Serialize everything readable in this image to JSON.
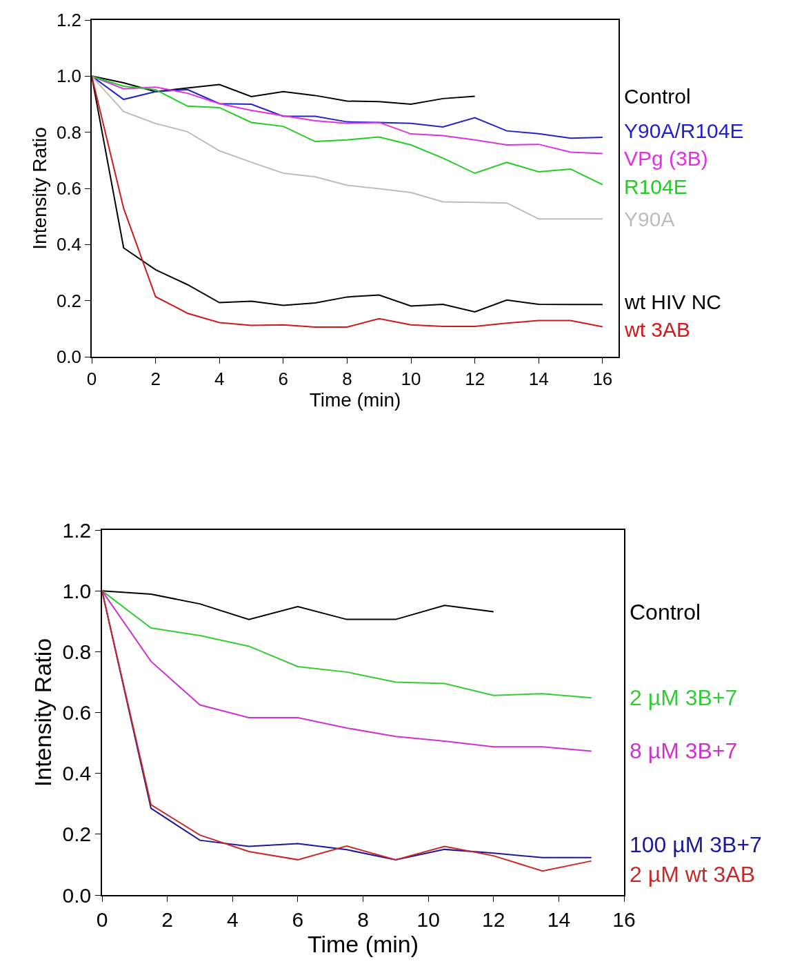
{
  "chart_data": [
    {
      "type": "line",
      "xlabel": "Time (min)",
      "ylabel": "Intensity Ratio",
      "grid": false,
      "legend": false,
      "marker": "none",
      "line_style": "solid",
      "xlim": [
        0,
        16.5
      ],
      "xticks": [
        0,
        2,
        4,
        6,
        8,
        10,
        12,
        14,
        16
      ],
      "ylim": [
        0,
        1.2
      ],
      "yticks": [
        {
          "value": 0,
          "label": "0.0"
        },
        {
          "value": 0.2,
          "label": "0.2"
        },
        {
          "value": 0.4,
          "label": "0.4"
        },
        {
          "value": 0.6,
          "label": "0.6"
        },
        {
          "value": 0.8,
          "label": "0.8"
        },
        {
          "value": 1.0,
          "label": "1.0"
        },
        {
          "value": 1.2,
          "label": "1.2"
        }
      ],
      "x": [
        0,
        1,
        2,
        3,
        4,
        5,
        6,
        7,
        8,
        9,
        10,
        11,
        12,
        13,
        14,
        15,
        16
      ],
      "series": [
        {
          "name": "Control",
          "color": "#000000",
          "x": [
            0,
            1,
            2,
            3,
            4,
            5,
            6,
            7,
            8,
            9,
            10,
            11,
            12
          ],
          "values": [
            1.0,
            0.976,
            0.945,
            0.958,
            0.97,
            0.927,
            0.945,
            0.931,
            0.911,
            0.909,
            0.9,
            0.92,
            0.928
          ]
        },
        {
          "name": "Y90A/R104E",
          "color": "#2222cc",
          "values": [
            1.0,
            0.917,
            0.945,
            0.952,
            0.902,
            0.9,
            0.857,
            0.857,
            0.837,
            0.835,
            0.832,
            0.819,
            0.852,
            0.805,
            0.795,
            0.779,
            0.782
          ]
        },
        {
          "name": "VPg (3B)",
          "color": "#e030e0",
          "values": [
            1.0,
            0.955,
            0.961,
            0.939,
            0.902,
            0.878,
            0.859,
            0.841,
            0.832,
            0.835,
            0.794,
            0.788,
            0.773,
            0.755,
            0.757,
            0.729,
            0.724
          ]
        },
        {
          "name": "R104E",
          "color": "#22cc22",
          "values": [
            1.0,
            0.964,
            0.952,
            0.893,
            0.888,
            0.835,
            0.821,
            0.767,
            0.773,
            0.783,
            0.755,
            0.708,
            0.654,
            0.693,
            0.659,
            0.669,
            0.613
          ]
        },
        {
          "name": "Y90A",
          "color": "#bdbdbd",
          "values": [
            1.0,
            0.874,
            0.831,
            0.802,
            0.734,
            0.693,
            0.654,
            0.641,
            0.611,
            0.599,
            0.585,
            0.552,
            0.55,
            0.548,
            0.491,
            0.491,
            0.491
          ]
        },
        {
          "name": "wt HIV NC",
          "color": "#000000",
          "values": [
            1.0,
            0.388,
            0.31,
            0.257,
            0.193,
            0.198,
            0.183,
            0.192,
            0.213,
            0.22,
            0.181,
            0.187,
            0.16,
            0.202,
            0.187,
            0.186,
            0.186
          ]
        },
        {
          "name": "wt 3AB",
          "color": "#d01818",
          "values": [
            1.0,
            0.529,
            0.214,
            0.155,
            0.122,
            0.112,
            0.114,
            0.106,
            0.106,
            0.136,
            0.114,
            0.108,
            0.108,
            0.12,
            0.129,
            0.129,
            0.107
          ]
        }
      ]
    },
    {
      "type": "line",
      "xlabel": "Time (min)",
      "ylabel": "Intensity Ratio",
      "grid": false,
      "legend": false,
      "marker": "none",
      "line_style": "solid",
      "xlim": [
        0,
        16
      ],
      "xticks": [
        0,
        2,
        4,
        6,
        8,
        10,
        12,
        14,
        16
      ],
      "ylim": [
        0,
        1.2
      ],
      "yticks": [
        {
          "value": 0,
          "label": "0.0"
        },
        {
          "value": 0.2,
          "label": "0.2"
        },
        {
          "value": 0.4,
          "label": "0.4"
        },
        {
          "value": 0.6,
          "label": "0.6"
        },
        {
          "value": 0.8,
          "label": "0.8"
        },
        {
          "value": 1.0,
          "label": "1.0"
        },
        {
          "value": 1.2,
          "label": "1.2"
        }
      ],
      "x": [
        0,
        1.5,
        3,
        4.5,
        6,
        7.5,
        9,
        10.5,
        12,
        13.5,
        15
      ],
      "series": [
        {
          "name": "Control",
          "color": "#000000",
          "x": [
            0,
            1.5,
            3,
            4.5,
            6,
            7.5,
            9,
            10.5,
            12
          ],
          "values": [
            1.0,
            0.989,
            0.957,
            0.906,
            0.948,
            0.906,
            0.906,
            0.952,
            0.931
          ]
        },
        {
          "name": "2 µM 3B+7",
          "color": "#33cc33",
          "values": [
            1.0,
            0.878,
            0.853,
            0.818,
            0.751,
            0.733,
            0.7,
            0.695,
            0.656,
            0.662,
            0.648
          ]
        },
        {
          "name": "8 µM 3B+7",
          "color": "#cc33cc",
          "values": [
            1.0,
            0.768,
            0.625,
            0.583,
            0.583,
            0.549,
            0.521,
            0.506,
            0.487,
            0.487,
            0.473
          ]
        },
        {
          "name": "100 µM 3B+7",
          "color": "#1a1a99",
          "values": [
            1.0,
            0.285,
            0.18,
            0.16,
            0.169,
            0.149,
            0.116,
            0.15,
            0.138,
            0.123,
            0.123
          ]
        },
        {
          "name": "2 µM wt 3AB",
          "color": "#c82828",
          "values": [
            1.0,
            0.297,
            0.197,
            0.143,
            0.116,
            0.161,
            0.116,
            0.16,
            0.129,
            0.079,
            0.112
          ]
        }
      ]
    }
  ]
}
